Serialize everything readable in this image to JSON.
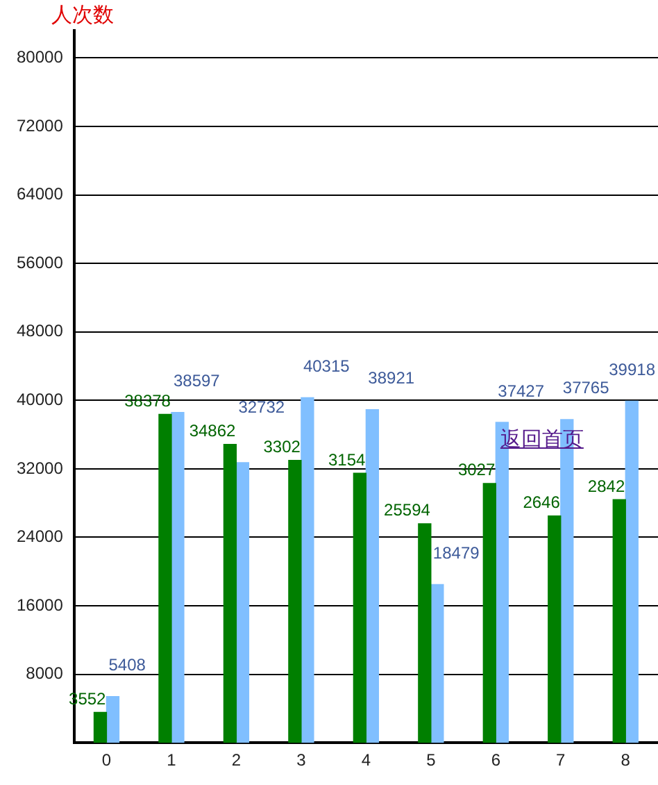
{
  "chart_data": {
    "type": "bar",
    "ylabel": "人次数",
    "categories": [
      "0",
      "1",
      "2",
      "3",
      "4",
      "5",
      "6",
      "7",
      "8"
    ],
    "series": [
      {
        "color": "#007f00",
        "values": [
          3552,
          38378,
          34862,
          33000,
          31500,
          25594,
          30300,
          26500,
          28400
        ],
        "value_labels": [
          "3552",
          "38378",
          "34862",
          null,
          null,
          "25594",
          null,
          null,
          null
        ]
      },
      {
        "color": "#80bfff",
        "values": [
          5408,
          38597,
          32732,
          40315,
          38921,
          18479,
          37427,
          37765,
          39918
        ],
        "value_labels": [
          "5408",
          "38597",
          "32732",
          "40315",
          "38921",
          "18479",
          "37427",
          "37765",
          "39918"
        ]
      }
    ],
    "ylim": [
      0,
      83200
    ],
    "yticks": [
      8000,
      16000,
      24000,
      32000,
      40000,
      48000,
      56000,
      64000,
      72000,
      80000
    ],
    "grid": "y",
    "legend": false,
    "annotations": [
      {
        "text": "3302",
        "x": "3",
        "y": 33000
      },
      {
        "text": "3154",
        "x": "4",
        "y": 31500
      },
      {
        "text": "3027",
        "x": "6",
        "y": 30300
      },
      {
        "text": "2646",
        "x": "7",
        "y": 26500
      },
      {
        "text": "2842",
        "x": "8",
        "y": 28400
      },
      "返回首页"
    ]
  }
}
